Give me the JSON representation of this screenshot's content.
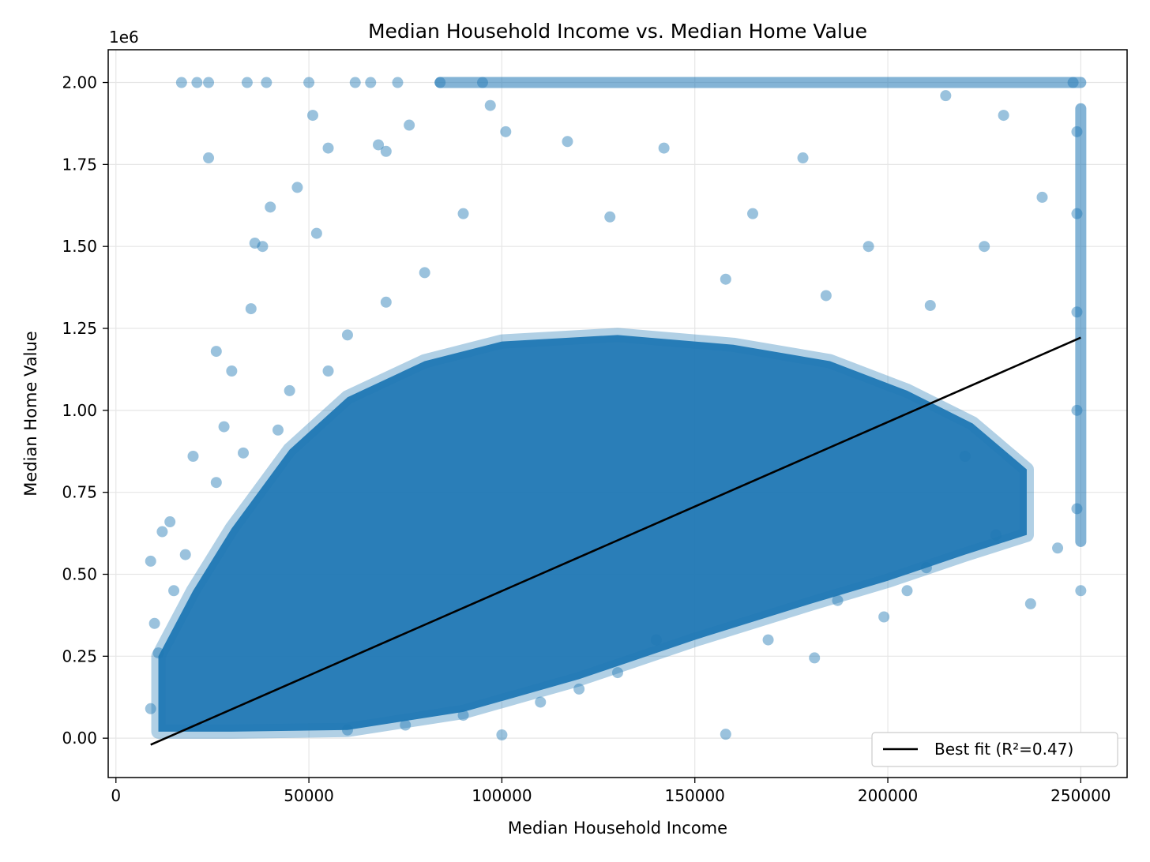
{
  "chart_data": {
    "type": "scatter",
    "title": "Median Household Income vs. Median Home Value",
    "xlabel": "Median Household Income",
    "ylabel": "Median Home Value",
    "y_offset_text": "1e6",
    "xlim": [
      -2000,
      262000
    ],
    "ylim": [
      -120000,
      2100000
    ],
    "x_ticks": [
      0,
      50000,
      100000,
      150000,
      200000,
      250000
    ],
    "x_tick_labels": [
      "0",
      "50000",
      "100000",
      "150000",
      "200000",
      "250000"
    ],
    "y_ticks": [
      0,
      250000,
      500000,
      750000,
      1000000,
      1250000,
      1500000,
      1750000,
      2000000
    ],
    "y_tick_labels": [
      "0.00",
      "0.25",
      "0.50",
      "0.75",
      "1.00",
      "1.25",
      "1.50",
      "1.75",
      "2.00"
    ],
    "grid": true,
    "legend_position": "lower-right",
    "colors": {
      "points": "#1f77b4",
      "fit_line": "#000000"
    },
    "series": [
      {
        "type": "scatter",
        "points": [
          [
            9000,
            540000
          ],
          [
            17000,
            2000000
          ],
          [
            21000,
            2000000
          ],
          [
            24000,
            2000000
          ],
          [
            24000,
            1770000
          ],
          [
            34000,
            2000000
          ],
          [
            39000,
            2000000
          ],
          [
            50000,
            2000000
          ],
          [
            51000,
            1900000
          ],
          [
            55000,
            1800000
          ],
          [
            62000,
            2000000
          ],
          [
            66000,
            2000000
          ],
          [
            68000,
            1810000
          ],
          [
            70000,
            1790000
          ],
          [
            73000,
            2000000
          ],
          [
            76000,
            1870000
          ],
          [
            84000,
            2000000
          ],
          [
            95000,
            2000000
          ],
          [
            97000,
            1930000
          ],
          [
            101000,
            1850000
          ],
          [
            38000,
            1500000
          ],
          [
            40000,
            1620000
          ],
          [
            36000,
            1510000
          ],
          [
            47000,
            1680000
          ],
          [
            52000,
            1540000
          ],
          [
            35000,
            1310000
          ],
          [
            30000,
            1120000
          ],
          [
            26000,
            1180000
          ],
          [
            28000,
            950000
          ],
          [
            20000,
            860000
          ],
          [
            12000,
            630000
          ],
          [
            14000,
            660000
          ],
          [
            10000,
            350000
          ],
          [
            11000,
            260000
          ],
          [
            9000,
            90000
          ],
          [
            100000,
            10000
          ],
          [
            158000,
            12000
          ],
          [
            181000,
            245000
          ],
          [
            169000,
            300000
          ],
          [
            237000,
            410000
          ],
          [
            228000,
            620000
          ],
          [
            225000,
            1500000
          ],
          [
            240000,
            1650000
          ],
          [
            230000,
            1900000
          ],
          [
            215000,
            1960000
          ],
          [
            195000,
            1500000
          ],
          [
            178000,
            1770000
          ],
          [
            165000,
            1600000
          ],
          [
            142000,
            1800000
          ],
          [
            128000,
            1590000
          ],
          [
            117000,
            1820000
          ],
          [
            249000,
            700000
          ],
          [
            249000,
            1000000
          ],
          [
            249000,
            1300000
          ],
          [
            249000,
            1600000
          ],
          [
            249000,
            1850000
          ],
          [
            250000,
            450000
          ],
          [
            248000,
            2000000
          ],
          [
            244000,
            580000
          ],
          [
            205000,
            450000
          ],
          [
            210000,
            520000
          ],
          [
            199000,
            370000
          ],
          [
            187000,
            420000
          ],
          [
            220000,
            860000
          ],
          [
            211000,
            1320000
          ],
          [
            184000,
            1350000
          ],
          [
            158000,
            1400000
          ],
          [
            90000,
            1600000
          ],
          [
            80000,
            1420000
          ],
          [
            70000,
            1330000
          ],
          [
            60000,
            1230000
          ],
          [
            55000,
            1120000
          ],
          [
            45000,
            1060000
          ],
          [
            42000,
            940000
          ],
          [
            33000,
            870000
          ],
          [
            26000,
            780000
          ],
          [
            18000,
            560000
          ],
          [
            15000,
            450000
          ],
          [
            140000,
            300000
          ],
          [
            130000,
            200000
          ],
          [
            120000,
            150000
          ],
          [
            110000,
            110000
          ],
          [
            90000,
            70000
          ],
          [
            75000,
            40000
          ],
          [
            60000,
            25000
          ]
        ]
      },
      {
        "type": "line",
        "name": "Best fit (R²=0.47)",
        "x": [
          9000,
          250000
        ],
        "y": [
          -20000,
          1222000
        ]
      }
    ],
    "bulk_band": {
      "lower": [
        [
          11000,
          20000
        ],
        [
          30000,
          20000
        ],
        [
          60000,
          25000
        ],
        [
          90000,
          80000
        ],
        [
          120000,
          180000
        ],
        [
          150000,
          300000
        ],
        [
          180000,
          410000
        ],
        [
          200000,
          480000
        ],
        [
          220000,
          560000
        ],
        [
          236000,
          620000
        ]
      ],
      "upper": [
        [
          11000,
          250000
        ],
        [
          20000,
          450000
        ],
        [
          30000,
          640000
        ],
        [
          45000,
          880000
        ],
        [
          60000,
          1040000
        ],
        [
          80000,
          1150000
        ],
        [
          100000,
          1210000
        ],
        [
          130000,
          1230000
        ],
        [
          160000,
          1200000
        ],
        [
          185000,
          1150000
        ],
        [
          205000,
          1060000
        ],
        [
          222000,
          960000
        ],
        [
          236000,
          820000
        ]
      ]
    }
  }
}
